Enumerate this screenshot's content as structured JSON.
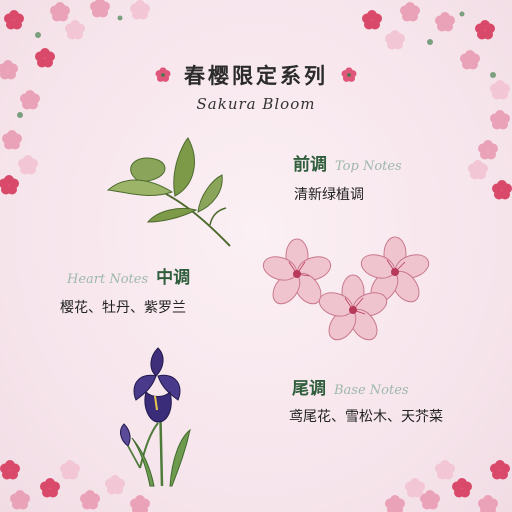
{
  "title": "春樱限定系列",
  "subtitle": "Sakura Bloom",
  "notes": {
    "top": {
      "label_cn": "前调",
      "label_en": "Top Notes",
      "items": "清新绿植调"
    },
    "heart": {
      "label_cn": "中调",
      "label_en": "Heart Notes",
      "items": "樱花、牡丹、紫罗兰"
    },
    "base": {
      "label_cn": "尾调",
      "label_en": "Base Notes",
      "items": "鸢尾花、雪松木、天芥菜"
    }
  },
  "icons": {
    "title_left": "pink-flower-icon",
    "title_right": "pink-flower-icon",
    "top_illustration": "green-leaf-illustration",
    "heart_illustration": "cherry-blossom-illustration",
    "base_illustration": "iris-illustration"
  },
  "colors": {
    "background": "#f8e8ee",
    "label_green": "#2f5e3d",
    "label_en_gray": "#9fb8ab",
    "accent_pink": "#e0567a"
  }
}
